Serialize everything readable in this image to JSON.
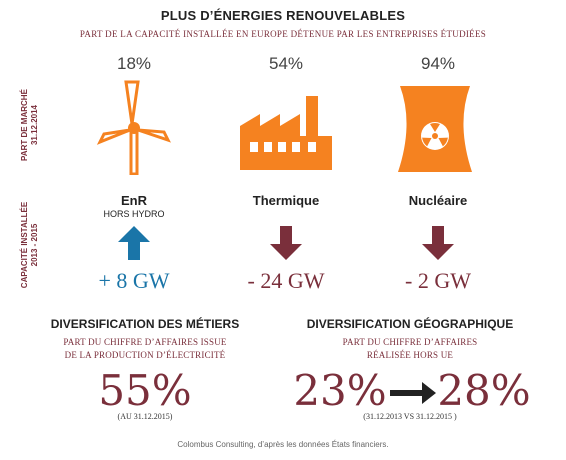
{
  "header": {
    "title": "PLUS D’ÉNERGIES RENOUVELABLES",
    "subtitle": "PART DE LA CAPACITÉ INSTALLÉE EN EUROPE DÉTENUE PAR LES ENTREPRISES ÉTUDIÉES"
  },
  "side_labels": {
    "market_share_line1": "PART DE MARCHÉ",
    "market_share_line2": "31.12.2014",
    "capacity_line1": "CAPACITÉ INSTALLÉE",
    "capacity_line2": "2013 - 2015"
  },
  "energies": [
    {
      "share": "18%",
      "name": "EnR",
      "sub": "HORS HYDRO",
      "change": "+ 8 GW",
      "direction": "up",
      "icon": "wind-turbine-icon",
      "color": "#1a75a8"
    },
    {
      "share": "54%",
      "name": "Thermique",
      "sub": "",
      "change": "- 24 GW",
      "direction": "down",
      "icon": "factory-icon",
      "color": "#7a2f3b"
    },
    {
      "share": "94%",
      "name": "Nucléaire",
      "sub": "",
      "change": "- 2 GW",
      "direction": "down",
      "icon": "nuclear-plant-icon",
      "color": "#7a2f3b"
    }
  ],
  "metiers": {
    "title": "DIVERSIFICATION DES MÉTIERS",
    "sub_line1": "PART DU CHIFFRE D’AFFAIRES ISSUE",
    "sub_line2": "DE LA PRODUCTION D’ÉLECTRICITÉ",
    "value": "55%",
    "note": "(AU 31.12.2015)"
  },
  "geo": {
    "title": "DIVERSIFICATION GÉOGRAPHIQUE",
    "sub_line1": "PART DU CHIFFRE D’AFFAIRES",
    "sub_line2": "RÉALISÉE HORS UE",
    "value_from": "23%",
    "value_to": "28%",
    "note": "(31.12.2013  VS 31.12.2015 )"
  },
  "footer": "Colombus Consulting, d’après les données États financiers.",
  "colors": {
    "orange": "#f58220",
    "maroon": "#7a2f3b",
    "blue": "#1a75a8"
  }
}
